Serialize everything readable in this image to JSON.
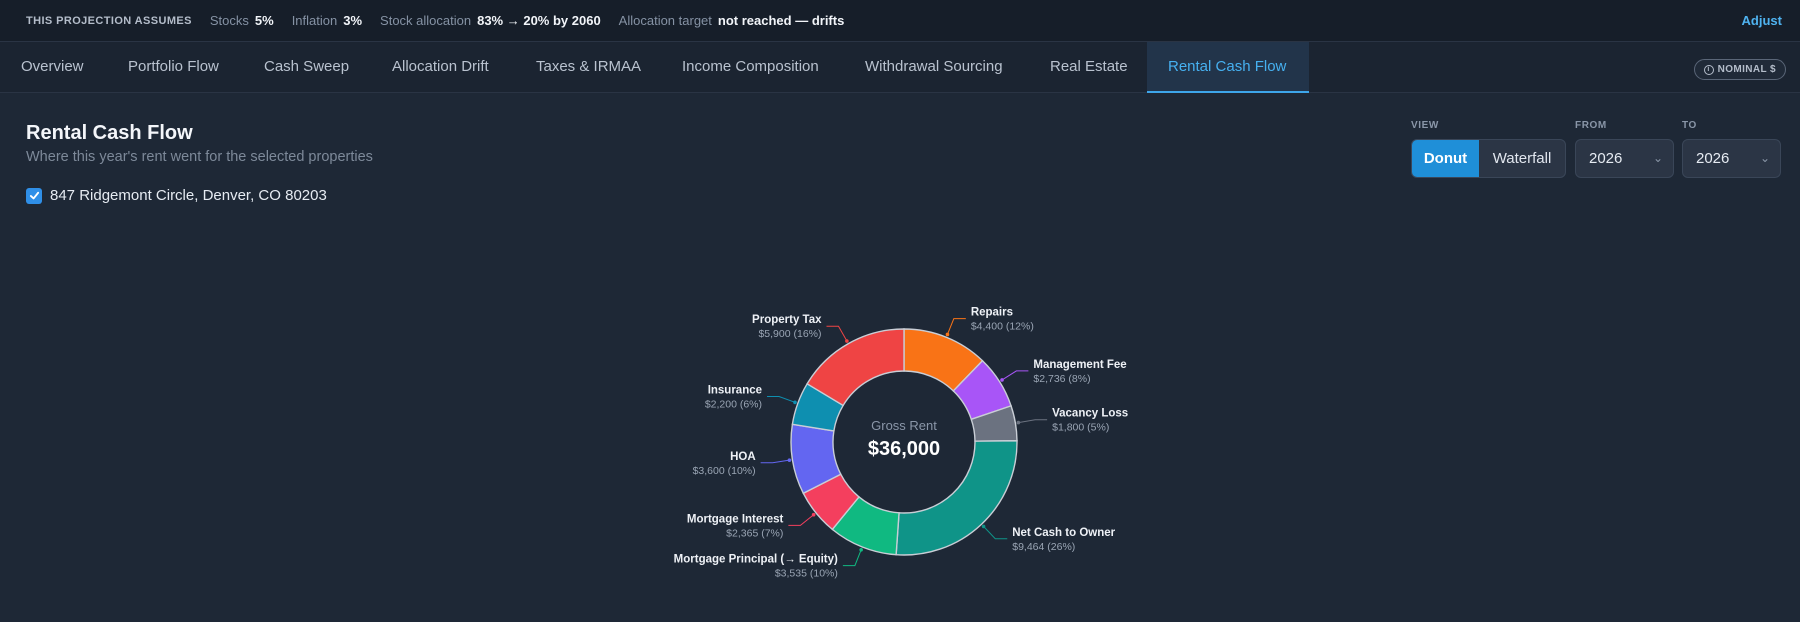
{
  "assumptions": {
    "lead": "THIS PROJECTION ASSUMES",
    "items": [
      {
        "key": "Stocks",
        "value": "5%"
      },
      {
        "key": "Inflation",
        "value": "3%"
      },
      {
        "key": "Stock allocation",
        "value": "83% → 20% by 2060"
      },
      {
        "key": "Allocation target",
        "value": "not reached — drifts"
      }
    ],
    "adjust_label": "Adjust"
  },
  "tabs": [
    {
      "label": "Overview"
    },
    {
      "label": "Portfolio Flow"
    },
    {
      "label": "Cash Sweep"
    },
    {
      "label": "Allocation Drift"
    },
    {
      "label": "Taxes & IRMAA"
    },
    {
      "label": "Income Composition"
    },
    {
      "label": "Withdrawal Sourcing"
    },
    {
      "label": "Real Estate"
    },
    {
      "label": "Rental Cash Flow"
    }
  ],
  "active_tab": "Rental Cash Flow",
  "nominal_badge": "NOMINAL $",
  "page": {
    "title": "Rental Cash Flow",
    "subtitle": "Where this year's rent went for the selected properties",
    "property": "847 Ridgemont Circle, Denver, CO 80203",
    "property_checked": true
  },
  "controls": {
    "view_label": "VIEW",
    "view_options": [
      "Donut",
      "Waterfall"
    ],
    "view_selected": "Donut",
    "from_label": "FROM",
    "from_value": "2026",
    "to_label": "TO",
    "to_value": "2026"
  },
  "chart_data": {
    "type": "pie",
    "center_label": "Gross Rent",
    "center_value": "$36,000",
    "total": 36000,
    "slices": [
      {
        "name": "Repairs",
        "value": 4400,
        "label": "$4,400 (12%)",
        "color": "#f97316"
      },
      {
        "name": "Management Fee",
        "value": 2736,
        "label": "$2,736 (8%)",
        "color": "#a855f7"
      },
      {
        "name": "Vacancy Loss",
        "value": 1800,
        "label": "$1,800 (5%)",
        "color": "#6b7280"
      },
      {
        "name": "Net Cash to Owner",
        "value": 9464,
        "label": "$9,464 (26%)",
        "color": "#0f9488"
      },
      {
        "name": "Mortgage Principal (→ Equity)",
        "value": 3535,
        "label": "$3,535 (10%)",
        "color": "#10b981"
      },
      {
        "name": "Mortgage Interest",
        "value": 2365,
        "label": "$2,365 (7%)",
        "color": "#f43f5e"
      },
      {
        "name": "HOA",
        "value": 3600,
        "label": "$3,600 (10%)",
        "color": "#6366f1"
      },
      {
        "name": "Insurance",
        "value": 2200,
        "label": "$2,200 (6%)",
        "color": "#0e8fb0"
      },
      {
        "name": "Property Tax",
        "value": 5900,
        "label": "$5,900 (16%)",
        "color": "#ef4444"
      }
    ]
  }
}
